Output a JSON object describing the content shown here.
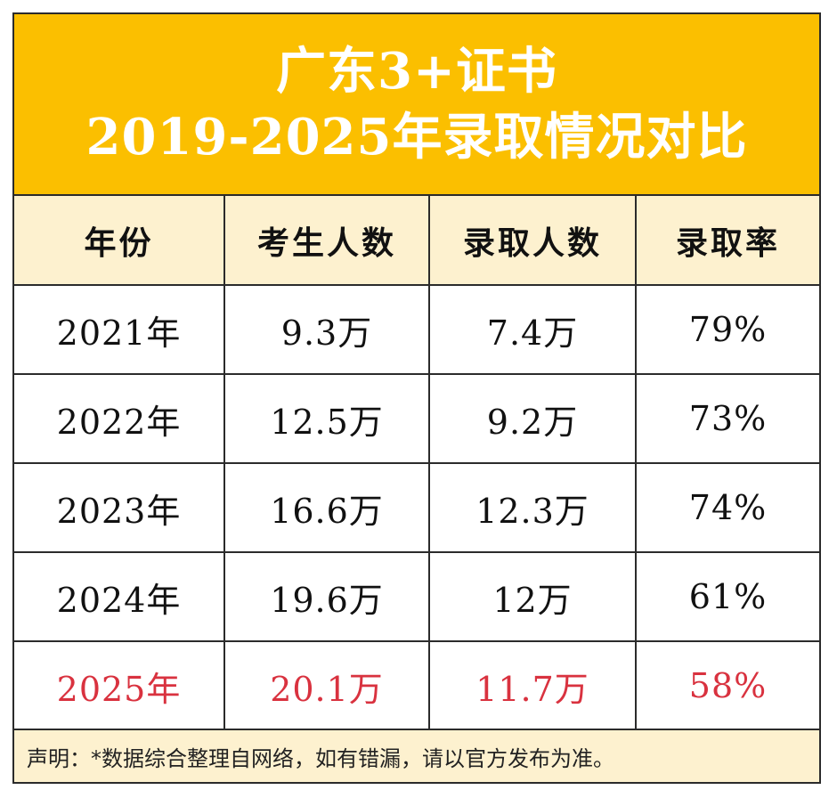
{
  "title": {
    "line1": "广东3+证书",
    "line2": "2019-2025年录取情况对比"
  },
  "table": {
    "headers": [
      "年份",
      "考生人数",
      "录取人数",
      "录取率"
    ],
    "rows": [
      [
        "2021年",
        "9.3万",
        "7.4万",
        "79%"
      ],
      [
        "2022年",
        "12.5万",
        "9.2万",
        "73%"
      ],
      [
        "2023年",
        "16.6万",
        "12.3万",
        "74%"
      ],
      [
        "2024年",
        "19.6万",
        "12万",
        "61%"
      ],
      [
        "2025年",
        "20.1万",
        "11.7万",
        "58%"
      ]
    ]
  },
  "footer": {
    "note": "声明：*数据综合整理自网络，如有错漏，请以官方发布为准。"
  },
  "colors": {
    "title_bg": "#fbbf00",
    "header_bg": "#fdf1cf",
    "highlight_text": "#d9323f",
    "border": "#2b2b2b"
  }
}
